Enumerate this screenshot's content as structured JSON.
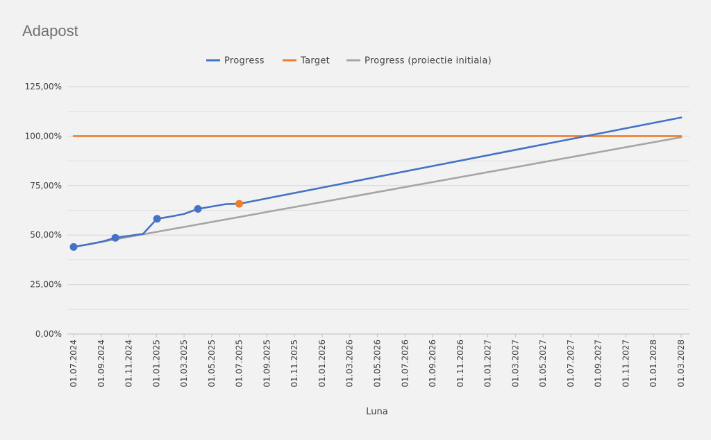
{
  "chart_data": {
    "type": "line",
    "title": "Adapost",
    "xlabel": "Luna",
    "ylabel": "",
    "x_ticks": [
      "01.07.2024",
      "01.09.2024",
      "01.11.2024",
      "01.01.2025",
      "01.03.2025",
      "01.05.2025",
      "01.07.2025",
      "01.09.2025",
      "01.11.2025",
      "01.01.2026",
      "01.03.2026",
      "01.05.2026",
      "01.07.2026",
      "01.09.2026",
      "01.11.2026",
      "01.01.2027",
      "01.03.2027",
      "01.05.2027",
      "01.07.2027",
      "01.09.2027",
      "01.11.2027",
      "01.01.2028",
      "01.03.2028"
    ],
    "y_ticks": [
      "0,00%",
      "25,00%",
      "50,00%",
      "75,00%",
      "100,00%",
      "125,00%"
    ],
    "xlim": [
      "2024-07-01",
      "2028-03-01"
    ],
    "ylim": [
      0,
      125
    ],
    "y_unit": "%",
    "grid": true,
    "legend_position": "top",
    "series": [
      {
        "name": "Progress",
        "color": "#4472c4",
        "points": [
          {
            "x": "2024-07-01",
            "y": 44.0,
            "marker": true
          },
          {
            "x": "2024-08-01",
            "y": 45.2,
            "marker": false
          },
          {
            "x": "2024-09-01",
            "y": 46.6,
            "marker": false
          },
          {
            "x": "2024-10-01",
            "y": 48.6,
            "marker": true
          },
          {
            "x": "2024-11-01",
            "y": 49.6,
            "marker": false
          },
          {
            "x": "2024-12-01",
            "y": 50.6,
            "marker": false
          },
          {
            "x": "2025-01-01",
            "y": 58.2,
            "marker": true
          },
          {
            "x": "2025-02-01",
            "y": 59.4,
            "marker": false
          },
          {
            "x": "2025-03-01",
            "y": 60.6,
            "marker": false
          },
          {
            "x": "2025-04-01",
            "y": 63.2,
            "marker": true
          },
          {
            "x": "2025-05-01",
            "y": 64.4,
            "marker": false
          },
          {
            "x": "2025-06-01",
            "y": 65.6,
            "marker": false
          },
          {
            "x": "2025-07-01",
            "y": 65.8,
            "marker": false
          },
          {
            "x": "2028-03-01",
            "y": 109.4,
            "marker": false
          }
        ]
      },
      {
        "name": "Target",
        "color": "#ed7d31",
        "points": [
          {
            "x": "2024-07-01",
            "y": 100,
            "marker": false
          },
          {
            "x": "2028-03-01",
            "y": 100,
            "marker": false
          }
        ],
        "highlight": {
          "x": "2025-07-01",
          "y": 65.8
        }
      },
      {
        "name": "Progress (proiectie initiala)",
        "color": "#a5a5a5",
        "points": [
          {
            "x": "2024-07-01",
            "y": 44.0,
            "marker": false
          },
          {
            "x": "2028-03-01",
            "y": 99.4,
            "marker": false
          }
        ]
      }
    ]
  }
}
